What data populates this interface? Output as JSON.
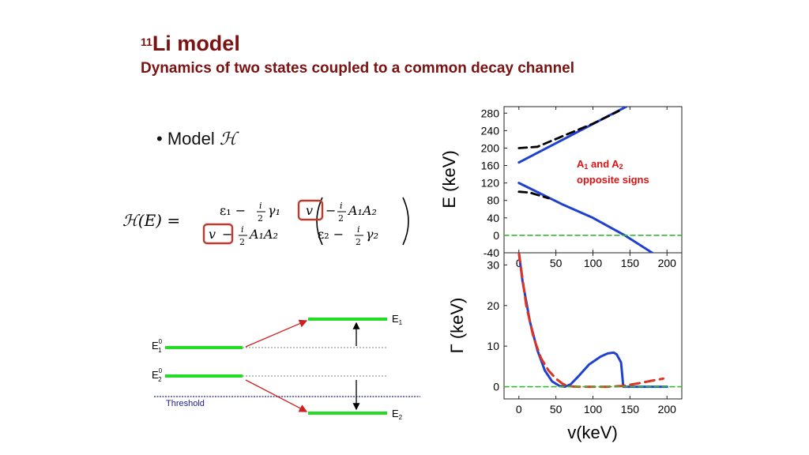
{
  "slide": {
    "title_sup": "11",
    "title_main": "Li model",
    "subtitle": "Dynamics of two states coupled to a common decay channel",
    "bullet": "Model",
    "bullet_symbol": "ℋ"
  },
  "equation": {
    "lhs": "ℋ(E) =",
    "m11": "ε₁ − ",
    "m11b": "γ₁",
    "m12v": "v",
    "m12rest": "A₁A₂",
    "m21v": "v",
    "m21rest": "A₁A₂",
    "m22": "ε₂ − ",
    "m22b": "γ₂",
    "frac_num": "i",
    "frac_den": "2",
    "minus": "−"
  },
  "level_diagram": {
    "e1_label": "E",
    "e1_sub": "1",
    "e2_label": "E",
    "e2_sub": "2",
    "e10_label": "E",
    "e10_sup": "0",
    "e10_sub": "1",
    "e20_label": "E",
    "e20_sup": "0",
    "e20_sub": "2",
    "threshold": "Threshold",
    "colors": {
      "level": "#22dd22",
      "arrow": "#cc2222",
      "threshold": "#1a1a99"
    }
  },
  "chart_data": [
    {
      "type": "line",
      "ylabel": "E (keV)",
      "xlim": [
        -20,
        220
      ],
      "ylim": [
        -40,
        295
      ],
      "yticks": [
        "280",
        "240",
        "200",
        "160",
        "120",
        "80",
        "40",
        "0",
        "-40"
      ],
      "annotation": {
        "line1a": "A",
        "line1sub1": "1",
        "line1b": " and A",
        "line1sub2": "2",
        "line2": "opposite signs"
      },
      "series": [
        {
          "style": "blue-solid",
          "x": [
            0,
            145
          ],
          "y": [
            167,
            295
          ]
        },
        {
          "style": "blue-solid",
          "x": [
            0,
            60,
            100,
            143,
            180
          ],
          "y": [
            120,
            70,
            40,
            0,
            -40
          ]
        },
        {
          "style": "black-dashed",
          "x": [
            0,
            25,
            60,
            100,
            135
          ],
          "y": [
            200,
            203,
            228,
            256,
            285
          ]
        },
        {
          "style": "black-dashed",
          "x": [
            0,
            15,
            40
          ],
          "y": [
            100,
            98,
            85
          ]
        },
        {
          "style": "green-dashed",
          "x": [
            -20,
            220
          ],
          "y": [
            0,
            0
          ]
        }
      ],
      "colors": {
        "blue": "#2040d0",
        "black": "#000000",
        "green": "#33bb33",
        "annotation": "#dd1111"
      }
    },
    {
      "type": "line",
      "xlabel": "v(keV)",
      "ylabel": "Γ (keV)",
      "xlim": [
        -20,
        220
      ],
      "ylim": [
        -3,
        33
      ],
      "xticks": [
        "0",
        "50",
        "100",
        "150",
        "200"
      ],
      "yticks": [
        "30",
        "20",
        "10",
        "0"
      ],
      "series": [
        {
          "style": "blue-solid",
          "x": [
            0,
            5,
            15,
            25,
            35,
            45,
            55,
            62,
            70,
            80,
            95,
            110,
            120,
            128,
            132,
            138,
            140,
            141,
            145,
            200
          ],
          "y": [
            33,
            26,
            16,
            9,
            4,
            1.3,
            0.2,
            0,
            0.6,
            2.5,
            5.5,
            7.4,
            8.2,
            8.4,
            8.0,
            6.0,
            2.0,
            0,
            0,
            0
          ]
        },
        {
          "style": "red-dashed",
          "x": [
            0,
            10,
            20,
            30,
            40,
            50,
            60,
            70,
            80,
            90,
            100,
            120,
            140,
            160,
            180,
            195
          ],
          "y": [
            33,
            20,
            12,
            7,
            4,
            2,
            0.6,
            0.1,
            0,
            0,
            0,
            0,
            0.2,
            0.8,
            1.5,
            2.0
          ]
        },
        {
          "style": "green-dashed",
          "x": [
            -20,
            220
          ],
          "y": [
            0,
            0
          ]
        }
      ],
      "colors": {
        "blue": "#2040d0",
        "red": "#dd3322",
        "green": "#33bb33"
      }
    }
  ]
}
